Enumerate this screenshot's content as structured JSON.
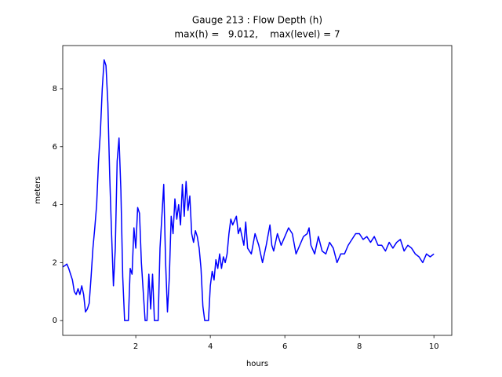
{
  "chart_data": {
    "type": "line",
    "title": "Gauge 213 : Flow Depth (h)",
    "subtitle": "max(h) =   9.012,    max(level) = 7",
    "x_label": "hours",
    "y_label": "meters",
    "xlim": [
      0.04,
      10.48
    ],
    "ylim": [
      -0.51,
      9.49
    ],
    "xticks": [
      2,
      4,
      6,
      8,
      10
    ],
    "yticks": [
      0,
      2,
      4,
      6,
      8
    ],
    "grid": false,
    "x": [
      0.04,
      0.1,
      0.15,
      0.2,
      0.25,
      0.3,
      0.35,
      0.4,
      0.45,
      0.5,
      0.55,
      0.6,
      0.65,
      0.7,
      0.75,
      0.8,
      0.85,
      0.9,
      0.95,
      1.0,
      1.05,
      1.1,
      1.15,
      1.2,
      1.25,
      1.3,
      1.35,
      1.4,
      1.45,
      1.5,
      1.55,
      1.6,
      1.65,
      1.7,
      1.8,
      1.85,
      1.9,
      1.95,
      2.0,
      2.05,
      2.1,
      2.15,
      2.2,
      2.25,
      2.3,
      2.35,
      2.4,
      2.45,
      2.5,
      2.6,
      2.65,
      2.7,
      2.75,
      2.8,
      2.85,
      2.9,
      2.95,
      3.0,
      3.05,
      3.1,
      3.15,
      3.2,
      3.25,
      3.3,
      3.35,
      3.4,
      3.45,
      3.5,
      3.55,
      3.6,
      3.65,
      3.7,
      3.75,
      3.8,
      3.85,
      3.95,
      4.0,
      4.05,
      4.1,
      4.15,
      4.2,
      4.25,
      4.3,
      4.35,
      4.4,
      4.45,
      4.5,
      4.55,
      4.6,
      4.7,
      4.75,
      4.8,
      4.9,
      4.95,
      5.0,
      5.1,
      5.2,
      5.3,
      5.4,
      5.5,
      5.6,
      5.65,
      5.7,
      5.8,
      5.9,
      6.0,
      6.1,
      6.2,
      6.3,
      6.4,
      6.5,
      6.6,
      6.65,
      6.7,
      6.8,
      6.9,
      7.0,
      7.1,
      7.2,
      7.3,
      7.4,
      7.5,
      7.6,
      7.7,
      7.8,
      7.9,
      8.0,
      8.1,
      8.2,
      8.3,
      8.4,
      8.5,
      8.6,
      8.7,
      8.8,
      8.9,
      9.0,
      9.1,
      9.2,
      9.3,
      9.4,
      9.5,
      9.6,
      9.7,
      9.8,
      9.9,
      10.0
    ],
    "series": [
      {
        "name": "h",
        "color": "#0000ff",
        "values": [
          1.85,
          1.9,
          1.95,
          1.8,
          1.6,
          1.4,
          1.0,
          0.9,
          1.1,
          0.9,
          1.2,
          0.9,
          0.3,
          0.4,
          0.6,
          1.5,
          2.5,
          3.2,
          4.0,
          5.5,
          6.5,
          8.0,
          9.0,
          8.8,
          7.5,
          5.0,
          3.0,
          1.2,
          2.5,
          5.5,
          6.3,
          4.5,
          1.5,
          0.0,
          0.0,
          1.8,
          1.6,
          3.2,
          2.5,
          3.9,
          3.7,
          2.0,
          1.0,
          0.0,
          0.0,
          1.6,
          0.4,
          1.6,
          0.0,
          0.0,
          2.5,
          3.6,
          4.7,
          2.0,
          0.3,
          1.5,
          3.6,
          3.0,
          4.2,
          3.5,
          4.0,
          3.3,
          4.7,
          3.6,
          4.8,
          3.8,
          4.3,
          3.0,
          2.7,
          3.1,
          2.9,
          2.5,
          1.8,
          0.5,
          0.0,
          0.0,
          1.2,
          1.7,
          1.4,
          2.1,
          1.8,
          2.3,
          1.8,
          2.2,
          2.0,
          2.3,
          3.0,
          3.5,
          3.3,
          3.6,
          3.0,
          3.2,
          2.6,
          3.4,
          2.5,
          2.3,
          3.0,
          2.6,
          2.0,
          2.6,
          3.3,
          2.6,
          2.4,
          3.0,
          2.6,
          2.9,
          3.2,
          3.0,
          2.3,
          2.6,
          2.9,
          3.0,
          3.2,
          2.6,
          2.3,
          2.9,
          2.4,
          2.3,
          2.7,
          2.5,
          2.0,
          2.3,
          2.3,
          2.6,
          2.8,
          3.0,
          3.0,
          2.8,
          2.9,
          2.7,
          2.9,
          2.6,
          2.6,
          2.4,
          2.7,
          2.5,
          2.7,
          2.8,
          2.4,
          2.6,
          2.5,
          2.3,
          2.2,
          2.0,
          2.3,
          2.2,
          2.3
        ]
      }
    ]
  }
}
